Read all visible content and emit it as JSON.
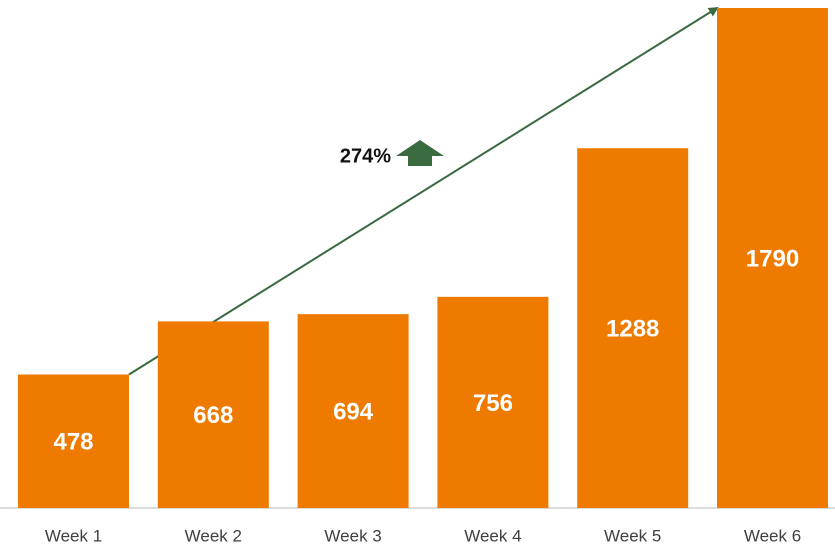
{
  "chart_data": {
    "type": "bar",
    "categories": [
      "Week 1",
      "Week 2",
      "Week 3",
      "Week 4",
      "Week 5",
      "Week 6"
    ],
    "values": [
      478,
      668,
      694,
      756,
      1288,
      1790
    ],
    "color": "#ef7a00",
    "annotation": "274%"
  }
}
